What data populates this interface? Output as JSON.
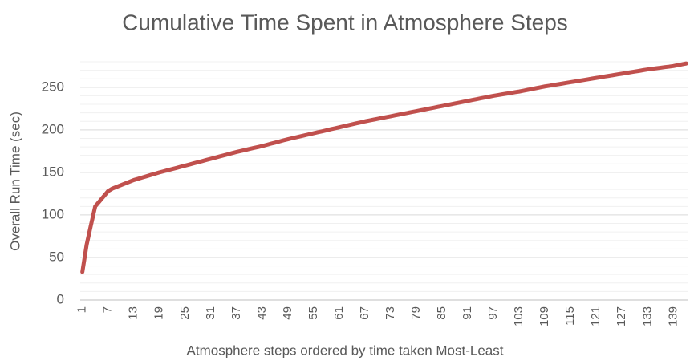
{
  "chart_data": {
    "type": "line",
    "title": "Cumulative Time Spent in Atmosphere Steps",
    "x_label": "Atmosphere steps ordered by time taken Most-Least",
    "y_label": "Overall Run Time (sec)",
    "categories": [
      1,
      null,
      null,
      null,
      null,
      null,
      7,
      null,
      null,
      null,
      null,
      null,
      13,
      null,
      null,
      null,
      null,
      null,
      19,
      null,
      null,
      null,
      null,
      null,
      25,
      null,
      null,
      null,
      null,
      null,
      31,
      null,
      null,
      null,
      null,
      null,
      37,
      null,
      null,
      null,
      null,
      null,
      43,
      null,
      null,
      null,
      null,
      null,
      49,
      null,
      null,
      null,
      null,
      null,
      55,
      null,
      null,
      null,
      null,
      null,
      61,
      null,
      null,
      null,
      null,
      null,
      67,
      null,
      null,
      null,
      null,
      null,
      73,
      null,
      null,
      null,
      null,
      null,
      79,
      null,
      null,
      null,
      null,
      null,
      85,
      null,
      null,
      null,
      null,
      null,
      91,
      null,
      null,
      null,
      null,
      null,
      97,
      null,
      null,
      null,
      null,
      null,
      103,
      null,
      null,
      null,
      null,
      null,
      109,
      null,
      null,
      null,
      null,
      null,
      115,
      null,
      null,
      null,
      null,
      null,
      121,
      null,
      null,
      null,
      null,
      null,
      127,
      null,
      null,
      null,
      null,
      null,
      133,
      null,
      null,
      null,
      null,
      null,
      139,
      null,
      null,
      null
    ],
    "series": [
      {
        "name": "Overall Run Time",
        "color": "#c0504d",
        "values": [
          33,
          65,
          88,
          110,
          116,
          122,
          128,
          131,
          133,
          135,
          137,
          139,
          141,
          142.5,
          144,
          145.5,
          147,
          148.5,
          150,
          151.3,
          152.7,
          154,
          155.3,
          156.7,
          158,
          159.3,
          160.7,
          162,
          163.3,
          164.7,
          166,
          167.3,
          168.7,
          170,
          171.3,
          172.7,
          174,
          175.2,
          176.3,
          177.5,
          178.7,
          179.8,
          181,
          182.3,
          183.7,
          185,
          186.3,
          187.7,
          189,
          190.2,
          191.3,
          192.5,
          193.7,
          194.8,
          196,
          197.2,
          198.3,
          199.5,
          200.7,
          201.8,
          203,
          204.2,
          205.3,
          206.5,
          207.7,
          208.8,
          210,
          211,
          212,
          213,
          214,
          215,
          216,
          217,
          218,
          219,
          220,
          221,
          222,
          223,
          224,
          225,
          226,
          227,
          228,
          229,
          230,
          231,
          232,
          233,
          234,
          235,
          236,
          237,
          238,
          239,
          240,
          240.8,
          241.7,
          242.5,
          243.3,
          244.2,
          245,
          246,
          247,
          248,
          249,
          250,
          251,
          251.8,
          252.7,
          253.5,
          254.3,
          255.2,
          256,
          256.8,
          257.7,
          258.5,
          259.3,
          260.2,
          261,
          261.8,
          262.7,
          263.5,
          264.3,
          265.2,
          266,
          266.8,
          267.7,
          268.5,
          269.3,
          270.2,
          271,
          271.7,
          272.3,
          273,
          273.7,
          274.3,
          275,
          276,
          277,
          278
        ]
      }
    ],
    "ylim": [
      0,
      280
    ],
    "yticks": [
      0,
      50,
      100,
      150,
      200,
      250
    ],
    "minor_yticks": [
      10,
      20,
      30,
      40,
      60,
      70,
      80,
      90,
      110,
      120,
      130,
      140,
      160,
      170,
      180,
      190,
      210,
      220,
      230,
      240,
      260,
      270,
      280
    ],
    "grid": true
  }
}
